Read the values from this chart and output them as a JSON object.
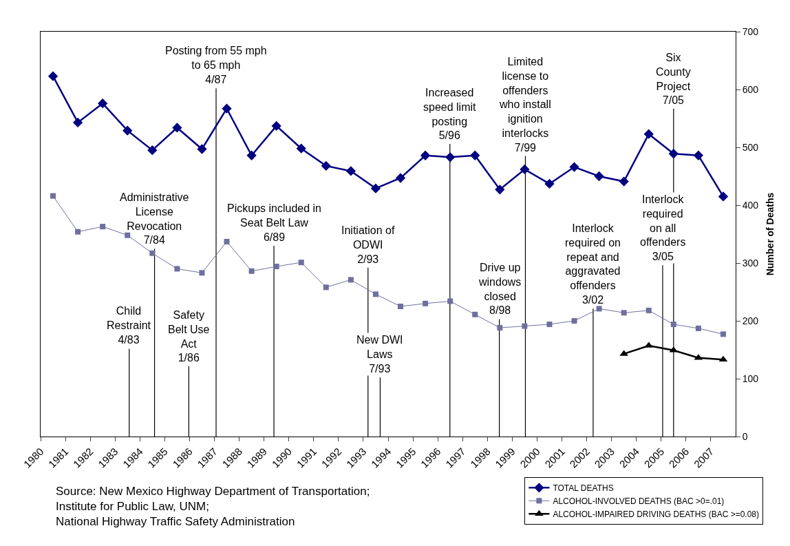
{
  "chart_data": {
    "type": "line",
    "ylabel": "Number of Deaths",
    "xlim": [
      1980,
      2008
    ],
    "xticks": [
      1980,
      1981,
      1982,
      1983,
      1984,
      1985,
      1986,
      1987,
      1988,
      1989,
      1990,
      1991,
      1992,
      1993,
      1994,
      1995,
      1996,
      1997,
      1998,
      1999,
      2000,
      2001,
      2002,
      2003,
      2004,
      2005,
      2006,
      2007
    ],
    "ylim": [
      0,
      700
    ],
    "yticks": [
      0,
      100,
      200,
      300,
      400,
      500,
      600,
      700
    ],
    "legend": "bottom right",
    "series": [
      {
        "name": "TOTAL DEATHS",
        "color": "#000080",
        "marker": "diamond",
        "x": [
          1980.5,
          1981.5,
          1982.5,
          1983.5,
          1984.5,
          1985.5,
          1986.5,
          1987.5,
          1988.5,
          1989.5,
          1990.5,
          1991.5,
          1992.5,
          1993.5,
          1994.5,
          1995.5,
          1996.5,
          1997.5,
          1998.5,
          1999.5,
          2000.5,
          2001.5,
          2002.5,
          2003.5,
          2004.5,
          2005.5,
          2006.5,
          2007.5
        ],
        "values": [
          623,
          543,
          576,
          529,
          495,
          534,
          497,
          567,
          486,
          537,
          498,
          468,
          459,
          429,
          447,
          486,
          483,
          486,
          427,
          462,
          437,
          466,
          450,
          441,
          523,
          489,
          486,
          415
        ]
      },
      {
        "name": "ALCOHOL-INVOLVED DEATHS (BAC >0=.01)",
        "color": "#6f6f9f",
        "marker": "square",
        "x": [
          1980.5,
          1981.5,
          1982.5,
          1983.5,
          1984.5,
          1985.5,
          1986.5,
          1987.5,
          1988.5,
          1989.5,
          1990.5,
          1991.5,
          1992.5,
          1993.5,
          1994.5,
          1995.5,
          1996.5,
          1997.5,
          1998.5,
          1999.5,
          2000.5,
          2001.5,
          2002.5,
          2003.5,
          2004.5,
          2005.5,
          2006.5,
          2007.5
        ],
        "values": [
          416,
          354,
          363,
          348,
          317,
          290,
          283,
          337,
          286,
          294,
          301,
          258,
          271,
          246,
          225,
          230,
          234,
          211,
          188,
          191,
          194,
          200,
          221,
          214,
          218,
          194,
          187,
          177
        ]
      },
      {
        "name": "ALCOHOL-IMPAIRED DRIVING DEATHS (BAC >=0.08)",
        "color": "#000000",
        "marker": "triangle",
        "x": [
          2003.5,
          2004.5,
          2005.5,
          2006.5,
          2007.5
        ],
        "values": [
          143,
          157,
          149,
          136,
          133
        ]
      }
    ],
    "ref_lines": [
      {
        "axis": "x",
        "value": 1983.57,
        "label": "Child\nRestraint\n4/83"
      },
      {
        "axis": "x",
        "value": 1984.59,
        "label": "Administrative\nLicense\nRevocation\n7/84"
      },
      {
        "axis": "x",
        "value": 1985.97,
        "label": "Safety\nBelt Use\nAct\n1/86"
      },
      {
        "axis": "x",
        "value": 1987.07,
        "label": "Posting from 55 mph\nto 65 mph\n4/87"
      },
      {
        "axis": "x",
        "value": 1989.4,
        "label": "Pickups included in\nSeat Belt Law\n6/89"
      },
      {
        "axis": "x",
        "value": 1993.19,
        "label": "Initiation of\nODWI\n2/93"
      },
      {
        "axis": "x",
        "value": 1993.68,
        "label": "New DWI\nLaws\n7/93"
      },
      {
        "axis": "x",
        "value": 1996.49,
        "label": "Increased\nspeed limit\nposting\n5/96"
      },
      {
        "axis": "x",
        "value": 1998.48,
        "label": "Drive up\nwindows\nclosed\n8/98"
      },
      {
        "axis": "x",
        "value": 1999.53,
        "label": "Limited\nlicense to\noffenders\nwho install\nignition\ninterlocks\n7/99"
      },
      {
        "axis": "x",
        "value": 2002.26,
        "label": "Interlock\nrequired on\nrepeat and\naggravated\noffenders\n3/02"
      },
      {
        "axis": "x",
        "value": 2005.06,
        "label": "Interlock\nrequired\non all\noffenders\n3/05"
      },
      {
        "axis": "x",
        "value": 2005.5,
        "label": "Six\nCounty\nProject\n7/05"
      }
    ],
    "annotations": [
      "Source: New Mexico Highway Department of Transportation;\nInstitute for Public Law, UNM;\nNational Highway Traffic Safety Administration"
    ]
  }
}
